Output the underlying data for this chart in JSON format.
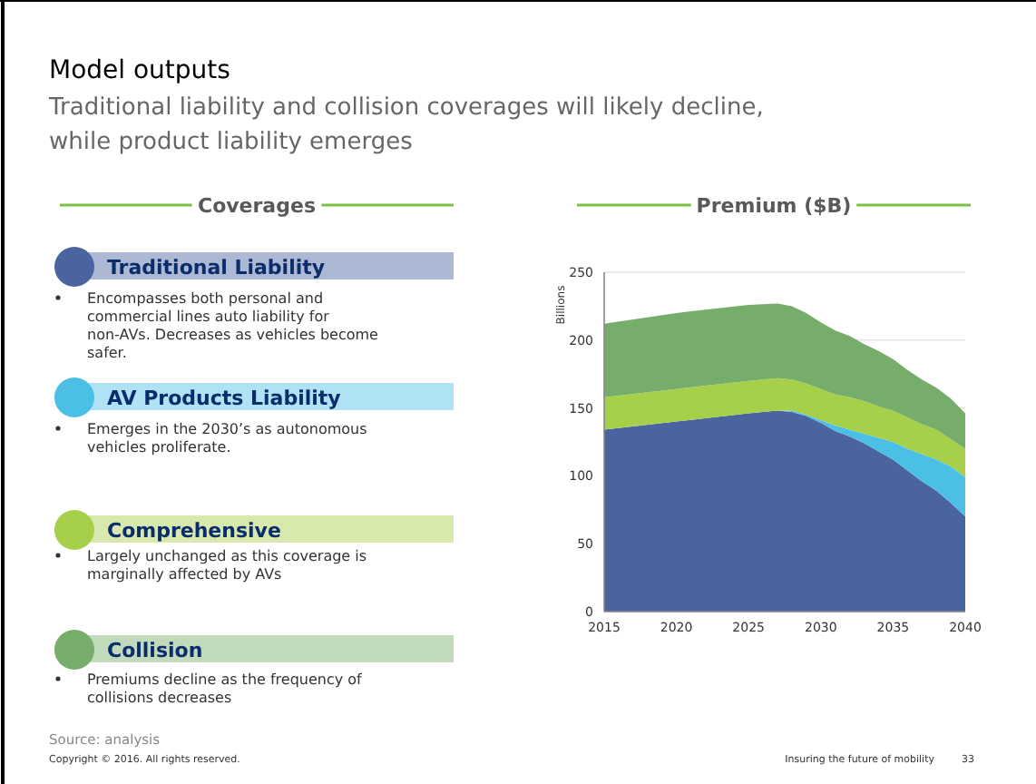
{
  "chart_data": [
    {
      "type": "other",
      "title": "Model outputs",
      "subtitle": "Traditional liability and collision coverages will likely decline, while product liability emerges",
      "annotations": [
        "Encompasses both personal and commercial lines auto liability for non-AVs. Decreases as vehicles become safer.",
        "Emerges in the 2030’s as autonomous vehicles proliferate.",
        "Largely unchanged as this coverage is marginally affected by AVs",
        "Premiums decline as the frequency of collisions decreases",
        "Source: analysis",
        "Copyright © 2016. All rights reserved.",
        "Insuring the future of mobility",
        "33"
      ]
    },
    {
      "type": "area",
      "title": "Premium ($B)",
      "ylabel": "Billions",
      "legend_title": "Coverages",
      "legend": "left",
      "stacked": true,
      "grid": "y",
      "x": [
        2015,
        2020,
        2025,
        2027,
        2028,
        2029,
        2030,
        2031,
        2032,
        2033,
        2034,
        2035,
        2036,
        2037,
        2038,
        2039,
        2040
      ],
      "xlim": [
        2015,
        2040
      ],
      "xticks": [
        2015,
        2020,
        2025,
        2030,
        2035,
        2040
      ],
      "ylim": [
        0,
        250
      ],
      "yticks": [
        0,
        50,
        100,
        150,
        200,
        250
      ],
      "series": [
        {
          "name": "Traditional Liability",
          "color": "#4a64a0",
          "values": [
            134,
            140,
            146,
            148,
            147,
            144,
            139,
            133,
            129,
            124,
            118,
            112,
            104,
            96,
            89,
            80,
            70
          ]
        },
        {
          "name": "AV Products Liability",
          "color": "#4cbfe6",
          "values": [
            0,
            0,
            0,
            0,
            1,
            1,
            2,
            4,
            5,
            7,
            10,
            13,
            16,
            20,
            23,
            27,
            29
          ]
        },
        {
          "name": "Comprehensive",
          "color": "#a6cf4a",
          "values": [
            24,
            24,
            24,
            24,
            23,
            23,
            23,
            23,
            24,
            24,
            23,
            23,
            23,
            22,
            22,
            20,
            21
          ]
        },
        {
          "name": "Collision",
          "color": "#77ad6b",
          "values": [
            54,
            56,
            56,
            55,
            54,
            52,
            49,
            47,
            45,
            42,
            41,
            38,
            35,
            33,
            31,
            30,
            26
          ]
        }
      ]
    }
  ]
}
